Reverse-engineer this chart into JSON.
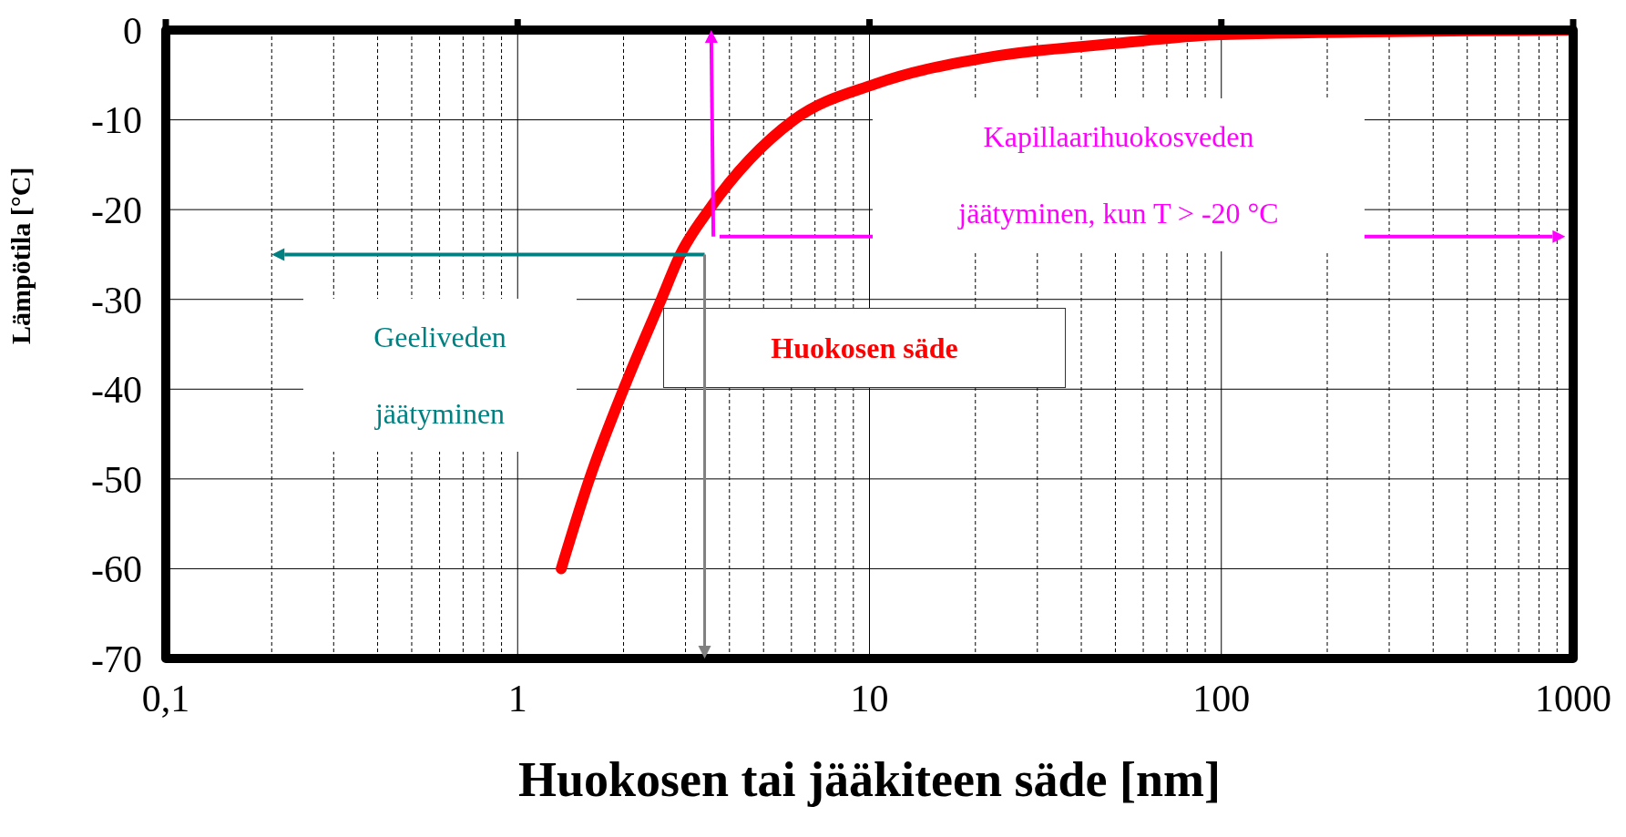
{
  "chart_data": {
    "type": "line",
    "xlabel": "Huokosen tai jääkiteen säde [nm]",
    "ylabel": "Lämpötila [°C]",
    "x": [
      1.33,
      1.6,
      2.0,
      2.56,
      2.9,
      3.5,
      6.1,
      10.4,
      22,
      50,
      100,
      1000
    ],
    "series": [
      {
        "name": "Huokosen säde",
        "color": "#ff0000",
        "values": [
          -60,
          -50,
          -40,
          -30,
          -25,
          -20,
          -10,
          -6,
          -3,
          -1.5,
          -0.5,
          0
        ]
      }
    ],
    "log": "x",
    "xlim": [
      0.1,
      1000
    ],
    "xticks": [
      {
        "value": 0.1,
        "label": "0,1"
      },
      1,
      10,
      100,
      1000
    ],
    "ylim": [
      -70,
      0
    ],
    "yticks": [
      -70,
      -60,
      -50,
      -40,
      -30,
      -20,
      -10,
      0
    ],
    "grid": true,
    "legend": "center",
    "annotations": [
      "Kapillaarihuokosveden jäätyminen, kun T > -20 °C",
      "Geeliveden jäätyminen"
    ]
  }
}
